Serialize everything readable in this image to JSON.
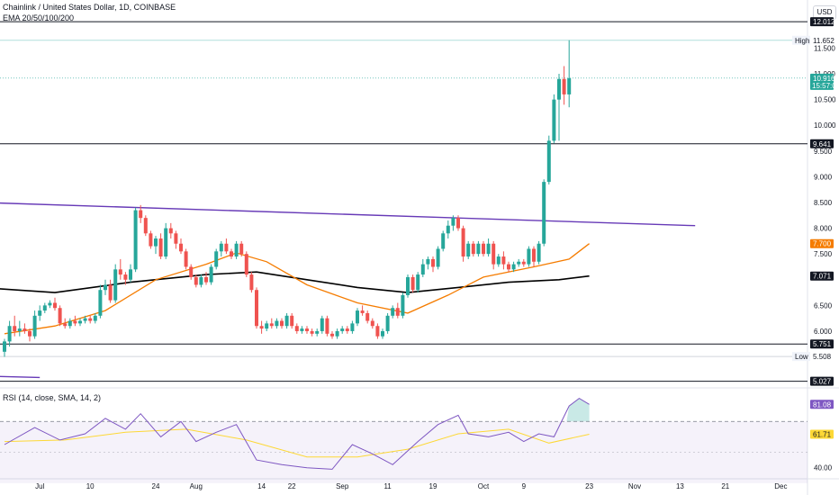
{
  "header": {
    "title": "Chainlink / United States Dollar, 1D, COINBASE",
    "indicator": "EMA 20/50/100/200"
  },
  "currency_button": "USD",
  "rsi_label": "RSI (14, close, SMA, 14, 2)",
  "colors": {
    "up": "#26a69a",
    "down": "#ef5350",
    "ema_orange": "#f57c00",
    "ema_black": "#000000",
    "trendline": "#673ab7",
    "rsi_line": "#7e57c2",
    "rsi_sma": "#fdd835"
  },
  "chart_data": {
    "type": "candlestick",
    "x_labels": [
      "Jul",
      "10",
      "24",
      "Aug",
      "14",
      "22",
      "Sep",
      "11",
      "19",
      "Oct",
      "9",
      "23",
      "Nov",
      "13",
      "21",
      "Dec"
    ],
    "y_ticks": [
      "11.500",
      "11.000",
      "10.500",
      "10.000",
      "9.500",
      "9.000",
      "8.500",
      "8.000",
      "7.500",
      "6.500",
      "6.000",
      "5.500"
    ],
    "ylim": [
      4.95,
      12.05
    ],
    "price_tags": [
      {
        "value": 12.012,
        "label": "12.012",
        "style": "black"
      },
      {
        "value": 11.652,
        "label": "11.652",
        "prefix": "High",
        "style": "plain"
      },
      {
        "value": 10.916,
        "label": "10.916",
        "sub": "15:57:06",
        "style": "green"
      },
      {
        "value": 9.641,
        "label": "9.641",
        "style": "black"
      },
      {
        "value": 7.7,
        "label": "7.700",
        "style": "orange"
      },
      {
        "value": 7.071,
        "label": "7.071",
        "style": "black"
      },
      {
        "value": 5.751,
        "label": "5.751",
        "style": "black"
      },
      {
        "value": 5.508,
        "label": "5.508",
        "prefix": "Low",
        "style": "plain"
      },
      {
        "value": 5.027,
        "label": "5.027",
        "style": "black"
      }
    ],
    "horizontal_levels": [
      12.012,
      9.641,
      5.751,
      5.027
    ],
    "trendline": {
      "start_day": -20,
      "start_value": 8.55,
      "end_day": 137,
      "end_value": 8.05
    },
    "candles": [
      {
        "o": 5.6,
        "h": 5.85,
        "l": 5.5,
        "c": 5.8
      },
      {
        "o": 5.8,
        "h": 6.2,
        "l": 5.7,
        "c": 6.1
      },
      {
        "o": 6.1,
        "h": 6.3,
        "l": 5.9,
        "c": 6.0
      },
      {
        "o": 6.0,
        "h": 6.2,
        "l": 5.9,
        "c": 6.05
      },
      {
        "o": 6.05,
        "h": 6.15,
        "l": 5.95,
        "c": 6.0
      },
      {
        "o": 6.0,
        "h": 6.05,
        "l": 5.8,
        "c": 5.9
      },
      {
        "o": 5.9,
        "h": 6.4,
        "l": 5.85,
        "c": 6.3
      },
      {
        "o": 6.3,
        "h": 6.5,
        "l": 6.2,
        "c": 6.4
      },
      {
        "o": 6.4,
        "h": 6.55,
        "l": 6.35,
        "c": 6.5
      },
      {
        "o": 6.5,
        "h": 6.6,
        "l": 6.45,
        "c": 6.55
      },
      {
        "o": 6.55,
        "h": 6.65,
        "l": 6.4,
        "c": 6.45
      },
      {
        "o": 6.45,
        "h": 6.5,
        "l": 6.1,
        "c": 6.15
      },
      {
        "o": 6.15,
        "h": 6.25,
        "l": 6.05,
        "c": 6.1
      },
      {
        "o": 6.1,
        "h": 6.25,
        "l": 6.05,
        "c": 6.2
      },
      {
        "o": 6.2,
        "h": 6.3,
        "l": 6.1,
        "c": 6.15
      },
      {
        "o": 6.15,
        "h": 6.25,
        "l": 6.1,
        "c": 6.2
      },
      {
        "o": 6.2,
        "h": 6.3,
        "l": 6.15,
        "c": 6.25
      },
      {
        "o": 6.25,
        "h": 6.3,
        "l": 6.15,
        "c": 6.2
      },
      {
        "o": 6.2,
        "h": 6.35,
        "l": 6.15,
        "c": 6.3
      },
      {
        "o": 6.3,
        "h": 6.9,
        "l": 6.25,
        "c": 6.8
      },
      {
        "o": 6.8,
        "h": 7.0,
        "l": 6.7,
        "c": 6.9
      },
      {
        "o": 6.9,
        "h": 7.0,
        "l": 6.55,
        "c": 6.6
      },
      {
        "o": 6.6,
        "h": 7.3,
        "l": 6.55,
        "c": 7.2
      },
      {
        "o": 7.2,
        "h": 7.4,
        "l": 7.0,
        "c": 7.1
      },
      {
        "o": 7.1,
        "h": 7.15,
        "l": 6.9,
        "c": 7.0
      },
      {
        "o": 7.0,
        "h": 7.3,
        "l": 6.95,
        "c": 7.2
      },
      {
        "o": 7.2,
        "h": 8.4,
        "l": 7.15,
        "c": 8.35
      },
      {
        "o": 8.35,
        "h": 8.45,
        "l": 8.1,
        "c": 8.2
      },
      {
        "o": 8.2,
        "h": 8.25,
        "l": 7.85,
        "c": 7.9
      },
      {
        "o": 7.9,
        "h": 7.95,
        "l": 7.6,
        "c": 7.65
      },
      {
        "o": 7.65,
        "h": 7.85,
        "l": 7.5,
        "c": 7.8
      },
      {
        "o": 7.8,
        "h": 7.9,
        "l": 7.4,
        "c": 7.45
      },
      {
        "o": 7.45,
        "h": 8.1,
        "l": 7.4,
        "c": 8.0
      },
      {
        "o": 8.0,
        "h": 8.1,
        "l": 7.8,
        "c": 7.9
      },
      {
        "o": 7.9,
        "h": 7.95,
        "l": 7.6,
        "c": 7.7
      },
      {
        "o": 7.7,
        "h": 7.8,
        "l": 7.5,
        "c": 7.55
      },
      {
        "o": 7.55,
        "h": 7.6,
        "l": 7.2,
        "c": 7.25
      },
      {
        "o": 7.25,
        "h": 7.3,
        "l": 7.0,
        "c": 7.05
      },
      {
        "o": 7.05,
        "h": 7.1,
        "l": 6.85,
        "c": 6.9
      },
      {
        "o": 6.9,
        "h": 7.1,
        "l": 6.85,
        "c": 7.05
      },
      {
        "o": 7.05,
        "h": 7.15,
        "l": 6.9,
        "c": 6.95
      },
      {
        "o": 6.95,
        "h": 7.3,
        "l": 6.9,
        "c": 7.25
      },
      {
        "o": 7.25,
        "h": 7.6,
        "l": 7.2,
        "c": 7.55
      },
      {
        "o": 7.55,
        "h": 7.75,
        "l": 7.45,
        "c": 7.7
      },
      {
        "o": 7.7,
        "h": 7.8,
        "l": 7.5,
        "c": 7.55
      },
      {
        "o": 7.55,
        "h": 7.6,
        "l": 7.4,
        "c": 7.45
      },
      {
        "o": 7.45,
        "h": 7.75,
        "l": 7.4,
        "c": 7.7
      },
      {
        "o": 7.7,
        "h": 7.75,
        "l": 7.45,
        "c": 7.5
      },
      {
        "o": 7.5,
        "h": 7.55,
        "l": 7.05,
        "c": 7.1
      },
      {
        "o": 7.1,
        "h": 7.15,
        "l": 6.75,
        "c": 6.8
      },
      {
        "o": 6.8,
        "h": 6.85,
        "l": 6.05,
        "c": 6.1
      },
      {
        "o": 6.1,
        "h": 6.2,
        "l": 5.95,
        "c": 6.05
      },
      {
        "o": 6.05,
        "h": 6.2,
        "l": 6.0,
        "c": 6.15
      },
      {
        "o": 6.15,
        "h": 6.25,
        "l": 6.05,
        "c": 6.1
      },
      {
        "o": 6.1,
        "h": 6.25,
        "l": 6.05,
        "c": 6.2
      },
      {
        "o": 6.2,
        "h": 6.25,
        "l": 6.05,
        "c": 6.1
      },
      {
        "o": 6.1,
        "h": 6.35,
        "l": 6.05,
        "c": 6.3
      },
      {
        "o": 6.3,
        "h": 6.35,
        "l": 6.05,
        "c": 6.1
      },
      {
        "o": 6.1,
        "h": 6.15,
        "l": 5.95,
        "c": 6.0
      },
      {
        "o": 6.0,
        "h": 6.1,
        "l": 5.95,
        "c": 6.05
      },
      {
        "o": 6.05,
        "h": 6.1,
        "l": 5.95,
        "c": 6.0
      },
      {
        "o": 6.0,
        "h": 6.05,
        "l": 5.9,
        "c": 5.95
      },
      {
        "o": 5.95,
        "h": 6.05,
        "l": 5.9,
        "c": 6.0
      },
      {
        "o": 6.0,
        "h": 6.3,
        "l": 5.95,
        "c": 6.25
      },
      {
        "o": 6.25,
        "h": 6.3,
        "l": 5.9,
        "c": 5.95
      },
      {
        "o": 5.95,
        "h": 6.0,
        "l": 5.85,
        "c": 5.9
      },
      {
        "o": 5.9,
        "h": 6.05,
        "l": 5.85,
        "c": 6.0
      },
      {
        "o": 6.0,
        "h": 6.1,
        "l": 5.95,
        "c": 6.05
      },
      {
        "o": 6.05,
        "h": 6.1,
        "l": 5.95,
        "c": 6.0
      },
      {
        "o": 6.0,
        "h": 6.2,
        "l": 5.95,
        "c": 6.15
      },
      {
        "o": 6.15,
        "h": 6.45,
        "l": 6.1,
        "c": 6.4
      },
      {
        "o": 6.4,
        "h": 6.5,
        "l": 6.3,
        "c": 6.35
      },
      {
        "o": 6.35,
        "h": 6.4,
        "l": 6.15,
        "c": 6.2
      },
      {
        "o": 6.2,
        "h": 6.25,
        "l": 6.05,
        "c": 6.1
      },
      {
        "o": 6.1,
        "h": 6.15,
        "l": 5.85,
        "c": 5.9
      },
      {
        "o": 5.9,
        "h": 6.05,
        "l": 5.85,
        "c": 6.0
      },
      {
        "o": 6.0,
        "h": 6.35,
        "l": 5.95,
        "c": 6.3
      },
      {
        "o": 6.3,
        "h": 6.5,
        "l": 6.25,
        "c": 6.45
      },
      {
        "o": 6.45,
        "h": 6.55,
        "l": 6.25,
        "c": 6.3
      },
      {
        "o": 6.3,
        "h": 6.75,
        "l": 6.25,
        "c": 6.7
      },
      {
        "o": 6.7,
        "h": 7.1,
        "l": 6.65,
        "c": 7.05
      },
      {
        "o": 7.05,
        "h": 7.1,
        "l": 6.75,
        "c": 6.8
      },
      {
        "o": 6.8,
        "h": 7.15,
        "l": 6.75,
        "c": 7.1
      },
      {
        "o": 7.1,
        "h": 7.4,
        "l": 7.05,
        "c": 7.3
      },
      {
        "o": 7.3,
        "h": 7.45,
        "l": 7.2,
        "c": 7.4
      },
      {
        "o": 7.4,
        "h": 7.45,
        "l": 7.15,
        "c": 7.25
      },
      {
        "o": 7.25,
        "h": 7.65,
        "l": 7.2,
        "c": 7.6
      },
      {
        "o": 7.6,
        "h": 7.95,
        "l": 7.55,
        "c": 7.9
      },
      {
        "o": 7.9,
        "h": 8.15,
        "l": 7.8,
        "c": 8.05
      },
      {
        "o": 8.05,
        "h": 8.25,
        "l": 7.95,
        "c": 8.2
      },
      {
        "o": 8.2,
        "h": 8.25,
        "l": 7.95,
        "c": 8.0
      },
      {
        "o": 8.0,
        "h": 8.05,
        "l": 7.35,
        "c": 7.45
      },
      {
        "o": 7.45,
        "h": 7.75,
        "l": 7.4,
        "c": 7.7
      },
      {
        "o": 7.7,
        "h": 7.75,
        "l": 7.45,
        "c": 7.5
      },
      {
        "o": 7.5,
        "h": 7.75,
        "l": 7.45,
        "c": 7.7
      },
      {
        "o": 7.7,
        "h": 7.75,
        "l": 7.45,
        "c": 7.5
      },
      {
        "o": 7.5,
        "h": 7.8,
        "l": 7.45,
        "c": 7.7
      },
      {
        "o": 7.7,
        "h": 7.75,
        "l": 7.2,
        "c": 7.3
      },
      {
        "o": 7.3,
        "h": 7.5,
        "l": 7.25,
        "c": 7.45
      },
      {
        "o": 7.45,
        "h": 7.55,
        "l": 7.2,
        "c": 7.3
      },
      {
        "o": 7.3,
        "h": 7.35,
        "l": 7.15,
        "c": 7.2
      },
      {
        "o": 7.2,
        "h": 7.35,
        "l": 7.15,
        "c": 7.3
      },
      {
        "o": 7.3,
        "h": 7.4,
        "l": 7.25,
        "c": 7.35
      },
      {
        "o": 7.35,
        "h": 7.4,
        "l": 7.25,
        "c": 7.3
      },
      {
        "o": 7.3,
        "h": 7.65,
        "l": 7.25,
        "c": 7.6
      },
      {
        "o": 7.6,
        "h": 7.65,
        "l": 7.25,
        "c": 7.35
      },
      {
        "o": 7.35,
        "h": 7.75,
        "l": 7.3,
        "c": 7.7
      },
      {
        "o": 7.7,
        "h": 8.95,
        "l": 7.65,
        "c": 8.9
      },
      {
        "o": 8.9,
        "h": 9.8,
        "l": 8.85,
        "c": 9.7
      },
      {
        "o": 9.7,
        "h": 10.6,
        "l": 9.65,
        "c": 10.5
      },
      {
        "o": 10.5,
        "h": 11.0,
        "l": 9.7,
        "c": 10.9
      },
      {
        "o": 10.9,
        "h": 11.15,
        "l": 10.4,
        "c": 10.6
      },
      {
        "o": 10.6,
        "h": 11.652,
        "l": 10.35,
        "c": 10.916
      }
    ],
    "ema_orange": [
      {
        "day": 0,
        "value": 5.95
      },
      {
        "day": 10,
        "value": 6.1
      },
      {
        "day": 20,
        "value": 6.4
      },
      {
        "day": 30,
        "value": 7.0
      },
      {
        "day": 40,
        "value": 7.3
      },
      {
        "day": 46,
        "value": 7.52
      },
      {
        "day": 52,
        "value": 7.35
      },
      {
        "day": 60,
        "value": 6.9
      },
      {
        "day": 70,
        "value": 6.55
      },
      {
        "day": 80,
        "value": 6.35
      },
      {
        "day": 88,
        "value": 6.7
      },
      {
        "day": 95,
        "value": 7.05
      },
      {
        "day": 105,
        "value": 7.25
      },
      {
        "day": 112,
        "value": 7.4
      },
      {
        "day": 116,
        "value": 7.7
      }
    ],
    "ema_black": [
      {
        "day": -20,
        "value": 7.1
      },
      {
        "day": -5,
        "value": 6.85
      },
      {
        "day": 10,
        "value": 6.75
      },
      {
        "day": 25,
        "value": 6.95
      },
      {
        "day": 40,
        "value": 7.1
      },
      {
        "day": 50,
        "value": 7.15
      },
      {
        "day": 60,
        "value": 7.0
      },
      {
        "day": 70,
        "value": 6.85
      },
      {
        "day": 80,
        "value": 6.75
      },
      {
        "day": 90,
        "value": 6.85
      },
      {
        "day": 100,
        "value": 6.95
      },
      {
        "day": 110,
        "value": 7.0
      },
      {
        "day": 116,
        "value": 7.071
      }
    ],
    "rsi": {
      "ylim": [
        34,
        90
      ],
      "y_ticks": [
        "40.00"
      ],
      "upper_band": 70,
      "lower_band": 30,
      "tags": [
        {
          "value": 81.08,
          "label": "81.08",
          "style": "purple"
        },
        {
          "value": 61.71,
          "label": "61.71",
          "style": "yellow"
        }
      ],
      "rsi_line": [
        {
          "day": 0,
          "value": 55
        },
        {
          "day": 6,
          "value": 66
        },
        {
          "day": 11,
          "value": 58
        },
        {
          "day": 16,
          "value": 62
        },
        {
          "day": 20,
          "value": 72
        },
        {
          "day": 24,
          "value": 65
        },
        {
          "day": 27,
          "value": 75
        },
        {
          "day": 31,
          "value": 60
        },
        {
          "day": 35,
          "value": 70
        },
        {
          "day": 38,
          "value": 57
        },
        {
          "day": 42,
          "value": 63
        },
        {
          "day": 46,
          "value": 68
        },
        {
          "day": 50,
          "value": 45
        },
        {
          "day": 55,
          "value": 42
        },
        {
          "day": 60,
          "value": 40
        },
        {
          "day": 65,
          "value": 39
        },
        {
          "day": 69,
          "value": 55
        },
        {
          "day": 73,
          "value": 49
        },
        {
          "day": 77,
          "value": 42
        },
        {
          "day": 82,
          "value": 57
        },
        {
          "day": 86,
          "value": 68
        },
        {
          "day": 90,
          "value": 74
        },
        {
          "day": 92,
          "value": 62
        },
        {
          "day": 96,
          "value": 60
        },
        {
          "day": 100,
          "value": 63
        },
        {
          "day": 103,
          "value": 57
        },
        {
          "day": 106,
          "value": 62
        },
        {
          "day": 109,
          "value": 60
        },
        {
          "day": 112,
          "value": 80
        },
        {
          "day": 114,
          "value": 85
        },
        {
          "day": 116,
          "value": 81.08
        }
      ],
      "rsi_sma": [
        {
          "day": 0,
          "value": 57
        },
        {
          "day": 12,
          "value": 58
        },
        {
          "day": 24,
          "value": 63
        },
        {
          "day": 36,
          "value": 65
        },
        {
          "day": 48,
          "value": 58
        },
        {
          "day": 60,
          "value": 47
        },
        {
          "day": 70,
          "value": 47
        },
        {
          "day": 80,
          "value": 52
        },
        {
          "day": 90,
          "value": 62
        },
        {
          "day": 100,
          "value": 65
        },
        {
          "day": 108,
          "value": 56
        },
        {
          "day": 116,
          "value": 61.71
        }
      ]
    }
  }
}
